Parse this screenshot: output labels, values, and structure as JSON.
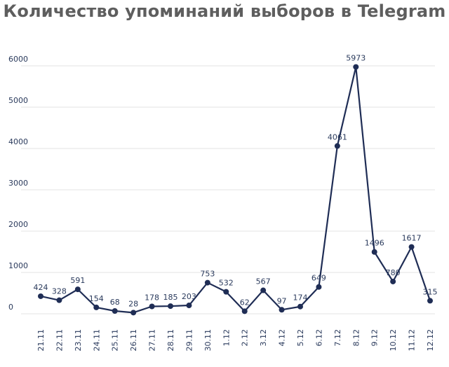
{
  "chart_data": {
    "type": "line",
    "title": "Количество упоминаний выборов в Telegram",
    "xlabel": "",
    "ylabel": "",
    "grid": true,
    "ylim": [
      0,
      6000
    ],
    "yticks": [
      "0",
      "1000",
      "2000",
      "3000",
      "4000",
      "5000",
      "6000"
    ],
    "categories": [
      "21.11",
      "22.11",
      "23.11",
      "24.11",
      "25.11",
      "26.11",
      "27.11",
      "28.11",
      "29.11",
      "30.11",
      "1.12",
      "2.12",
      "3.12",
      "4.12",
      "5.12",
      "6.12",
      "7.12",
      "8.12",
      "9.12",
      "10.12",
      "11.12",
      "12.12"
    ],
    "values": [
      424,
      328,
      591,
      154,
      68,
      28,
      178,
      185,
      203,
      753,
      532,
      62,
      567,
      97,
      174,
      649,
      4061,
      5973,
      1496,
      780,
      1617,
      315
    ],
    "data_labels": [
      "424",
      "328",
      "591",
      "154",
      "68",
      "28",
      "178",
      "185",
      "203",
      "753",
      "532",
      "62",
      "567",
      "97",
      "174",
      "649",
      "4061",
      "5973",
      "1496",
      "780",
      "1617",
      "315"
    ],
    "colors": {
      "line": "#1f2d55",
      "grid": "#e3e3e3",
      "title": "#5e5e5e",
      "text": "#2a3a5c"
    }
  }
}
